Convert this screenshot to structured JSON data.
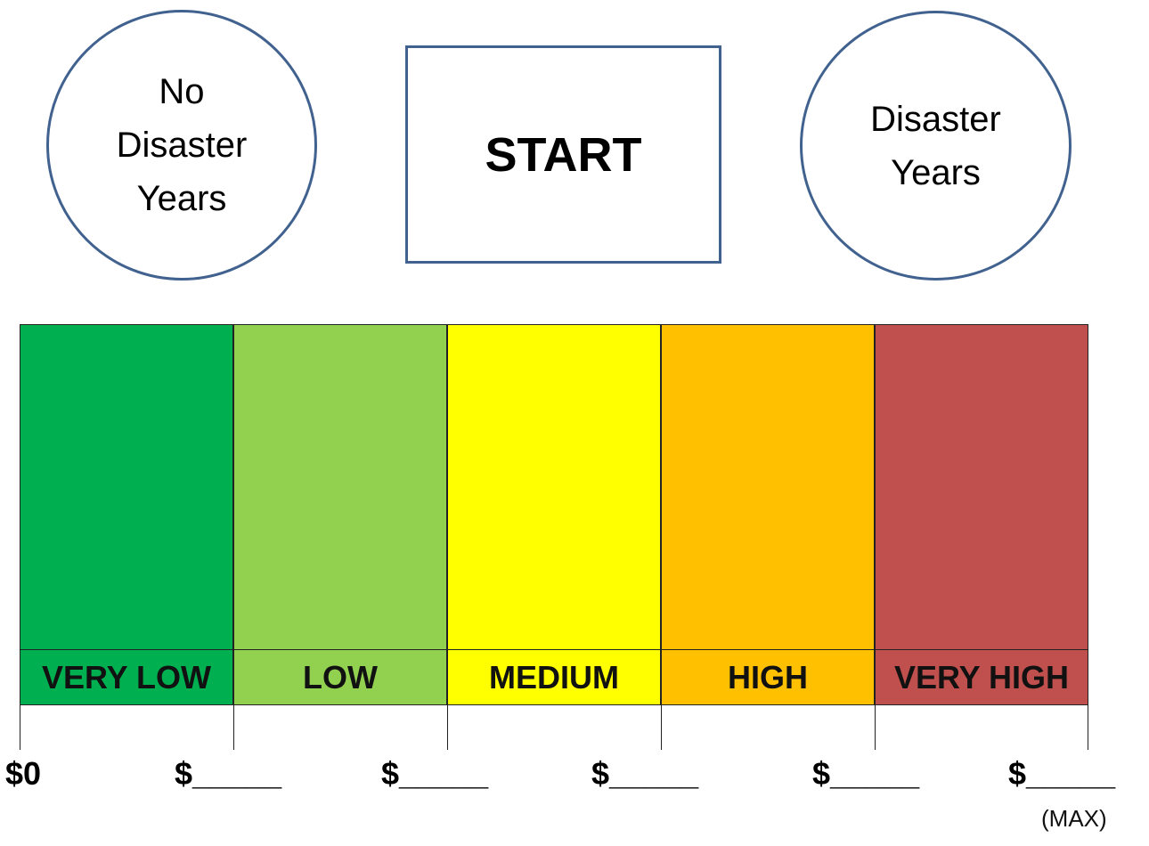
{
  "circles": {
    "left": [
      "No",
      "Disaster",
      "Years"
    ],
    "right": [
      "Disaster",
      "Years"
    ]
  },
  "start": {
    "label": "START"
  },
  "scale": {
    "bands": [
      {
        "label": "VERY LOW",
        "color": "#00b050"
      },
      {
        "label": "LOW",
        "color": "#92d050"
      },
      {
        "label": "MEDIUM",
        "color": "#ffff00"
      },
      {
        "label": "HIGH",
        "color": "#ffc000"
      },
      {
        "label": "VERY HIGH",
        "color": "#c0504d"
      }
    ],
    "prices": [
      "$0",
      "$_____",
      "$_____",
      "$_____",
      "$_____",
      "$_____"
    ],
    "max_note": "(MAX)"
  },
  "colors": {
    "outline": "#41628f"
  }
}
